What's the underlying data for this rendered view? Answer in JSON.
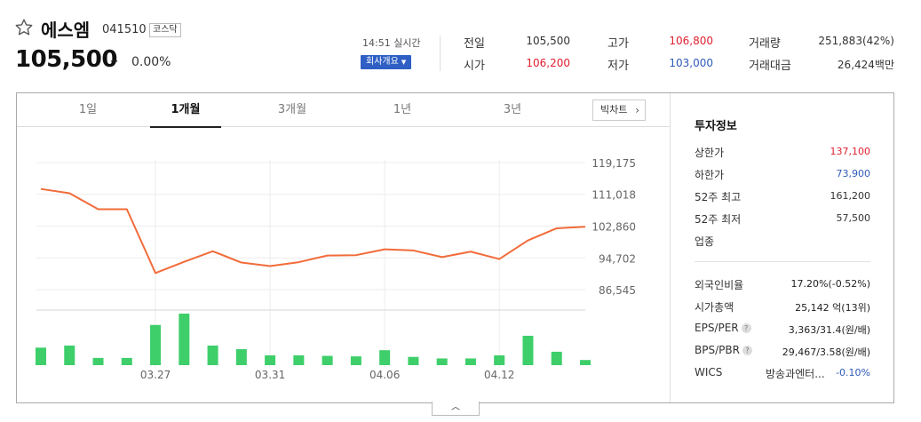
{
  "header": {
    "name": "에스엠",
    "code": "041510",
    "market": "코스닥",
    "price": "105,500",
    "change_sign": "–",
    "change_rate": "0.00%",
    "realtime_label": "14:51 실시간",
    "company_button": "회사개요"
  },
  "quotes": [
    {
      "label": "전일",
      "value": "105,500",
      "color": "#333333"
    },
    {
      "label": "시가",
      "value": "106,200",
      "color": "#e0202f"
    },
    {
      "label": "고가",
      "value": "106,800",
      "color": "#e0202f"
    },
    {
      "label": "저가",
      "value": "103,000",
      "color": "#2f5ab8"
    },
    {
      "label": "거래량",
      "value": "251,883(42%)",
      "color": "#333333"
    },
    {
      "label": "거래대금",
      "value": "26,424백만",
      "color": "#333333"
    }
  ],
  "tabs": [
    {
      "label": "1일",
      "active": false
    },
    {
      "label": "1개월",
      "active": true
    },
    {
      "label": "3개월",
      "active": false
    },
    {
      "label": "1년",
      "active": false
    },
    {
      "label": "3년",
      "active": false
    }
  ],
  "bigchart_label": "빅차트",
  "chart_data": {
    "type": "line",
    "y_ticks": [
      "119,175",
      "111,018",
      "102,860",
      "94,702",
      "86,545"
    ],
    "y_tick_values": [
      119175,
      111018,
      102860,
      94702,
      86545
    ],
    "x_labels": [
      "03.27",
      "03.31",
      "04.06",
      "04.12"
    ],
    "x_label_indices": [
      4,
      8,
      12,
      16
    ],
    "price_series": [
      112400,
      111300,
      107200,
      107200,
      90800,
      93700,
      96400,
      93500,
      92600,
      93600,
      95300,
      95400,
      96900,
      96600,
      94900,
      96300,
      94400,
      99200,
      102300,
      102700
    ],
    "volume_series": [
      0.34,
      0.38,
      0.14,
      0.14,
      0.78,
      1.0,
      0.38,
      0.31,
      0.19,
      0.19,
      0.18,
      0.17,
      0.29,
      0.16,
      0.13,
      0.13,
      0.19,
      0.57,
      0.26,
      0.1
    ],
    "line_color": "#f26b3a",
    "volume_color": "#3ecf6a"
  },
  "invest": {
    "title": "투자정보",
    "rows": [
      {
        "label": "상한가",
        "value": "137,100",
        "color": "#e0202f"
      },
      {
        "label": "하한가",
        "value": "73,900",
        "color": "#2f5ab8"
      },
      {
        "label": "52주 최고",
        "value": "161,200",
        "color": "#333333"
      },
      {
        "label": "52주 최저",
        "value": "57,500",
        "color": "#333333"
      },
      {
        "label": "업종",
        "value": "",
        "color": "#333333"
      }
    ],
    "rows2": [
      {
        "label": "외국인비율",
        "value": "17.20%",
        "sub": "(-0.52%)",
        "help": false
      },
      {
        "label": "시가총액",
        "value": "25,142",
        "sub": "억(13위)",
        "help": false
      },
      {
        "label": "EPS/PER",
        "value": "3,363/31.4",
        "sub": "(원/배)",
        "help": true
      },
      {
        "label": "BPS/PBR",
        "value": "29,467/3.58",
        "sub": "(원/배)",
        "help": true
      }
    ],
    "wics_label": "WICS",
    "wics_sector": "방송과엔터...",
    "wics_change": "-0.10%",
    "wics_change_color": "#2f5ab8"
  },
  "collapse_icon": "chevron-up-icon"
}
